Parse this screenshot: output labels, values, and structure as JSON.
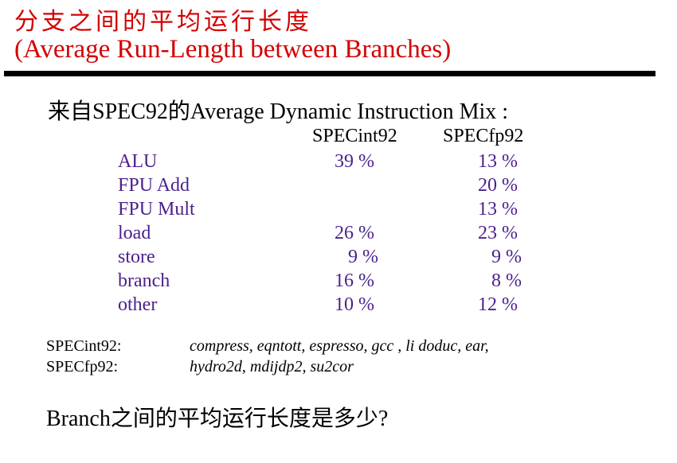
{
  "title": {
    "chinese": "分支之间的平均运行长度",
    "english": "(Average Run-Length between  Branches)"
  },
  "subtitle": "来自SPEC92的Average Dynamic Instruction Mix :",
  "mix_table": {
    "headers": [
      "SPECint92",
      "SPECfp92"
    ],
    "rows": [
      {
        "label": "ALU",
        "int": "39 %",
        "fp": "13 %"
      },
      {
        "label": "FPU Add",
        "int": "",
        "fp": "20 %"
      },
      {
        "label": "FPU Mult",
        "int": "",
        "fp": "13 %"
      },
      {
        "label": "load",
        "int": "26 %",
        "fp": "23 %"
      },
      {
        "label": "store",
        "int": "9 %",
        "fp": "9 %"
      },
      {
        "label": "branch",
        "int": "16 %",
        "fp": "8 %"
      },
      {
        "label": "other",
        "int": "10 %",
        "fp": "12 %"
      }
    ]
  },
  "benchmarks": [
    {
      "name": "SPECint92:",
      "programs": "compress, eqntott, espresso, gcc , li  doduc, ear,"
    },
    {
      "name": "SPECfp92:",
      "programs": "hydro2d, mdijdp2, su2cor"
    }
  ],
  "question": "Branch之间的平均运行长度是多少?",
  "colors": {
    "title": "#d40000",
    "table_text": "#4b1f8c",
    "body_text": "#000000"
  }
}
